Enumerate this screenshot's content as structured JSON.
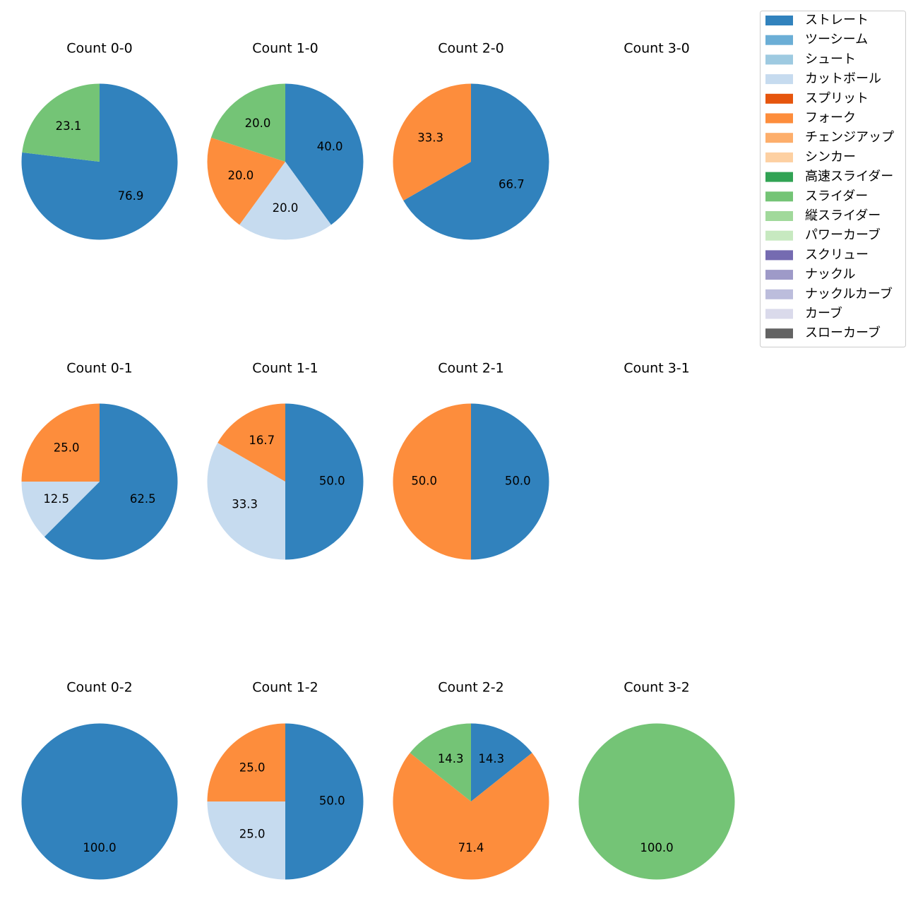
{
  "chart_data": {
    "type": "pie",
    "legend": {
      "placement": "top-right",
      "entries": [
        {
          "name": "ストレート",
          "color": "#3182bd"
        },
        {
          "name": "ツーシーム",
          "color": "#6baed6"
        },
        {
          "name": "シュート",
          "color": "#9ecae1"
        },
        {
          "name": "カットボール",
          "color": "#c6dbef"
        },
        {
          "name": "スプリット",
          "color": "#e6550d"
        },
        {
          "name": "フォーク",
          "color": "#fd8d3c"
        },
        {
          "name": "チェンジアップ",
          "color": "#fdae6b"
        },
        {
          "name": "シンカー",
          "color": "#fdd0a2"
        },
        {
          "name": "高速スライダー",
          "color": "#31a354"
        },
        {
          "name": "スライダー",
          "color": "#74c476"
        },
        {
          "name": "縦スライダー",
          "color": "#a1d99b"
        },
        {
          "name": "パワーカーブ",
          "color": "#c7e9c0"
        },
        {
          "name": "スクリュー",
          "color": "#756bb1"
        },
        {
          "name": "ナックル",
          "color": "#9e9ac8"
        },
        {
          "name": "ナックルカーブ",
          "color": "#bcbddc"
        },
        {
          "name": "カーブ",
          "color": "#dadaeb"
        },
        {
          "name": "スローカーブ",
          "color": "#636363"
        }
      ]
    },
    "charts": [
      {
        "title": "Count 0-0",
        "slices": [
          {
            "pitch": "ストレート",
            "value": 76.9
          },
          {
            "pitch": "スライダー",
            "value": 23.1
          }
        ]
      },
      {
        "title": "Count 1-0",
        "slices": [
          {
            "pitch": "ストレート",
            "value": 40.0
          },
          {
            "pitch": "カットボール",
            "value": 20.0
          },
          {
            "pitch": "フォーク",
            "value": 20.0
          },
          {
            "pitch": "スライダー",
            "value": 20.0
          }
        ]
      },
      {
        "title": "Count 2-0",
        "slices": [
          {
            "pitch": "ストレート",
            "value": 66.7
          },
          {
            "pitch": "フォーク",
            "value": 33.3
          }
        ]
      },
      {
        "title": "Count 3-0",
        "slices": []
      },
      {
        "title": "Count 0-1",
        "slices": [
          {
            "pitch": "ストレート",
            "value": 62.5
          },
          {
            "pitch": "カットボール",
            "value": 12.5
          },
          {
            "pitch": "フォーク",
            "value": 25.0
          }
        ]
      },
      {
        "title": "Count 1-1",
        "slices": [
          {
            "pitch": "ストレート",
            "value": 50.0
          },
          {
            "pitch": "カットボール",
            "value": 33.3
          },
          {
            "pitch": "フォーク",
            "value": 16.7
          }
        ]
      },
      {
        "title": "Count 2-1",
        "slices": [
          {
            "pitch": "ストレート",
            "value": 50.0
          },
          {
            "pitch": "フォーク",
            "value": 50.0
          }
        ]
      },
      {
        "title": "Count 3-1",
        "slices": []
      },
      {
        "title": "Count 0-2",
        "slices": [
          {
            "pitch": "ストレート",
            "value": 100.0
          }
        ]
      },
      {
        "title": "Count 1-2",
        "slices": [
          {
            "pitch": "ストレート",
            "value": 50.0
          },
          {
            "pitch": "カットボール",
            "value": 25.0
          },
          {
            "pitch": "フォーク",
            "value": 25.0
          }
        ]
      },
      {
        "title": "Count 2-2",
        "slices": [
          {
            "pitch": "ストレート",
            "value": 14.3
          },
          {
            "pitch": "フォーク",
            "value": 71.4
          },
          {
            "pitch": "スライダー",
            "value": 14.3
          }
        ]
      },
      {
        "title": "Count 3-2",
        "slices": [
          {
            "pitch": "スライダー",
            "value": 100.0
          }
        ]
      }
    ]
  }
}
